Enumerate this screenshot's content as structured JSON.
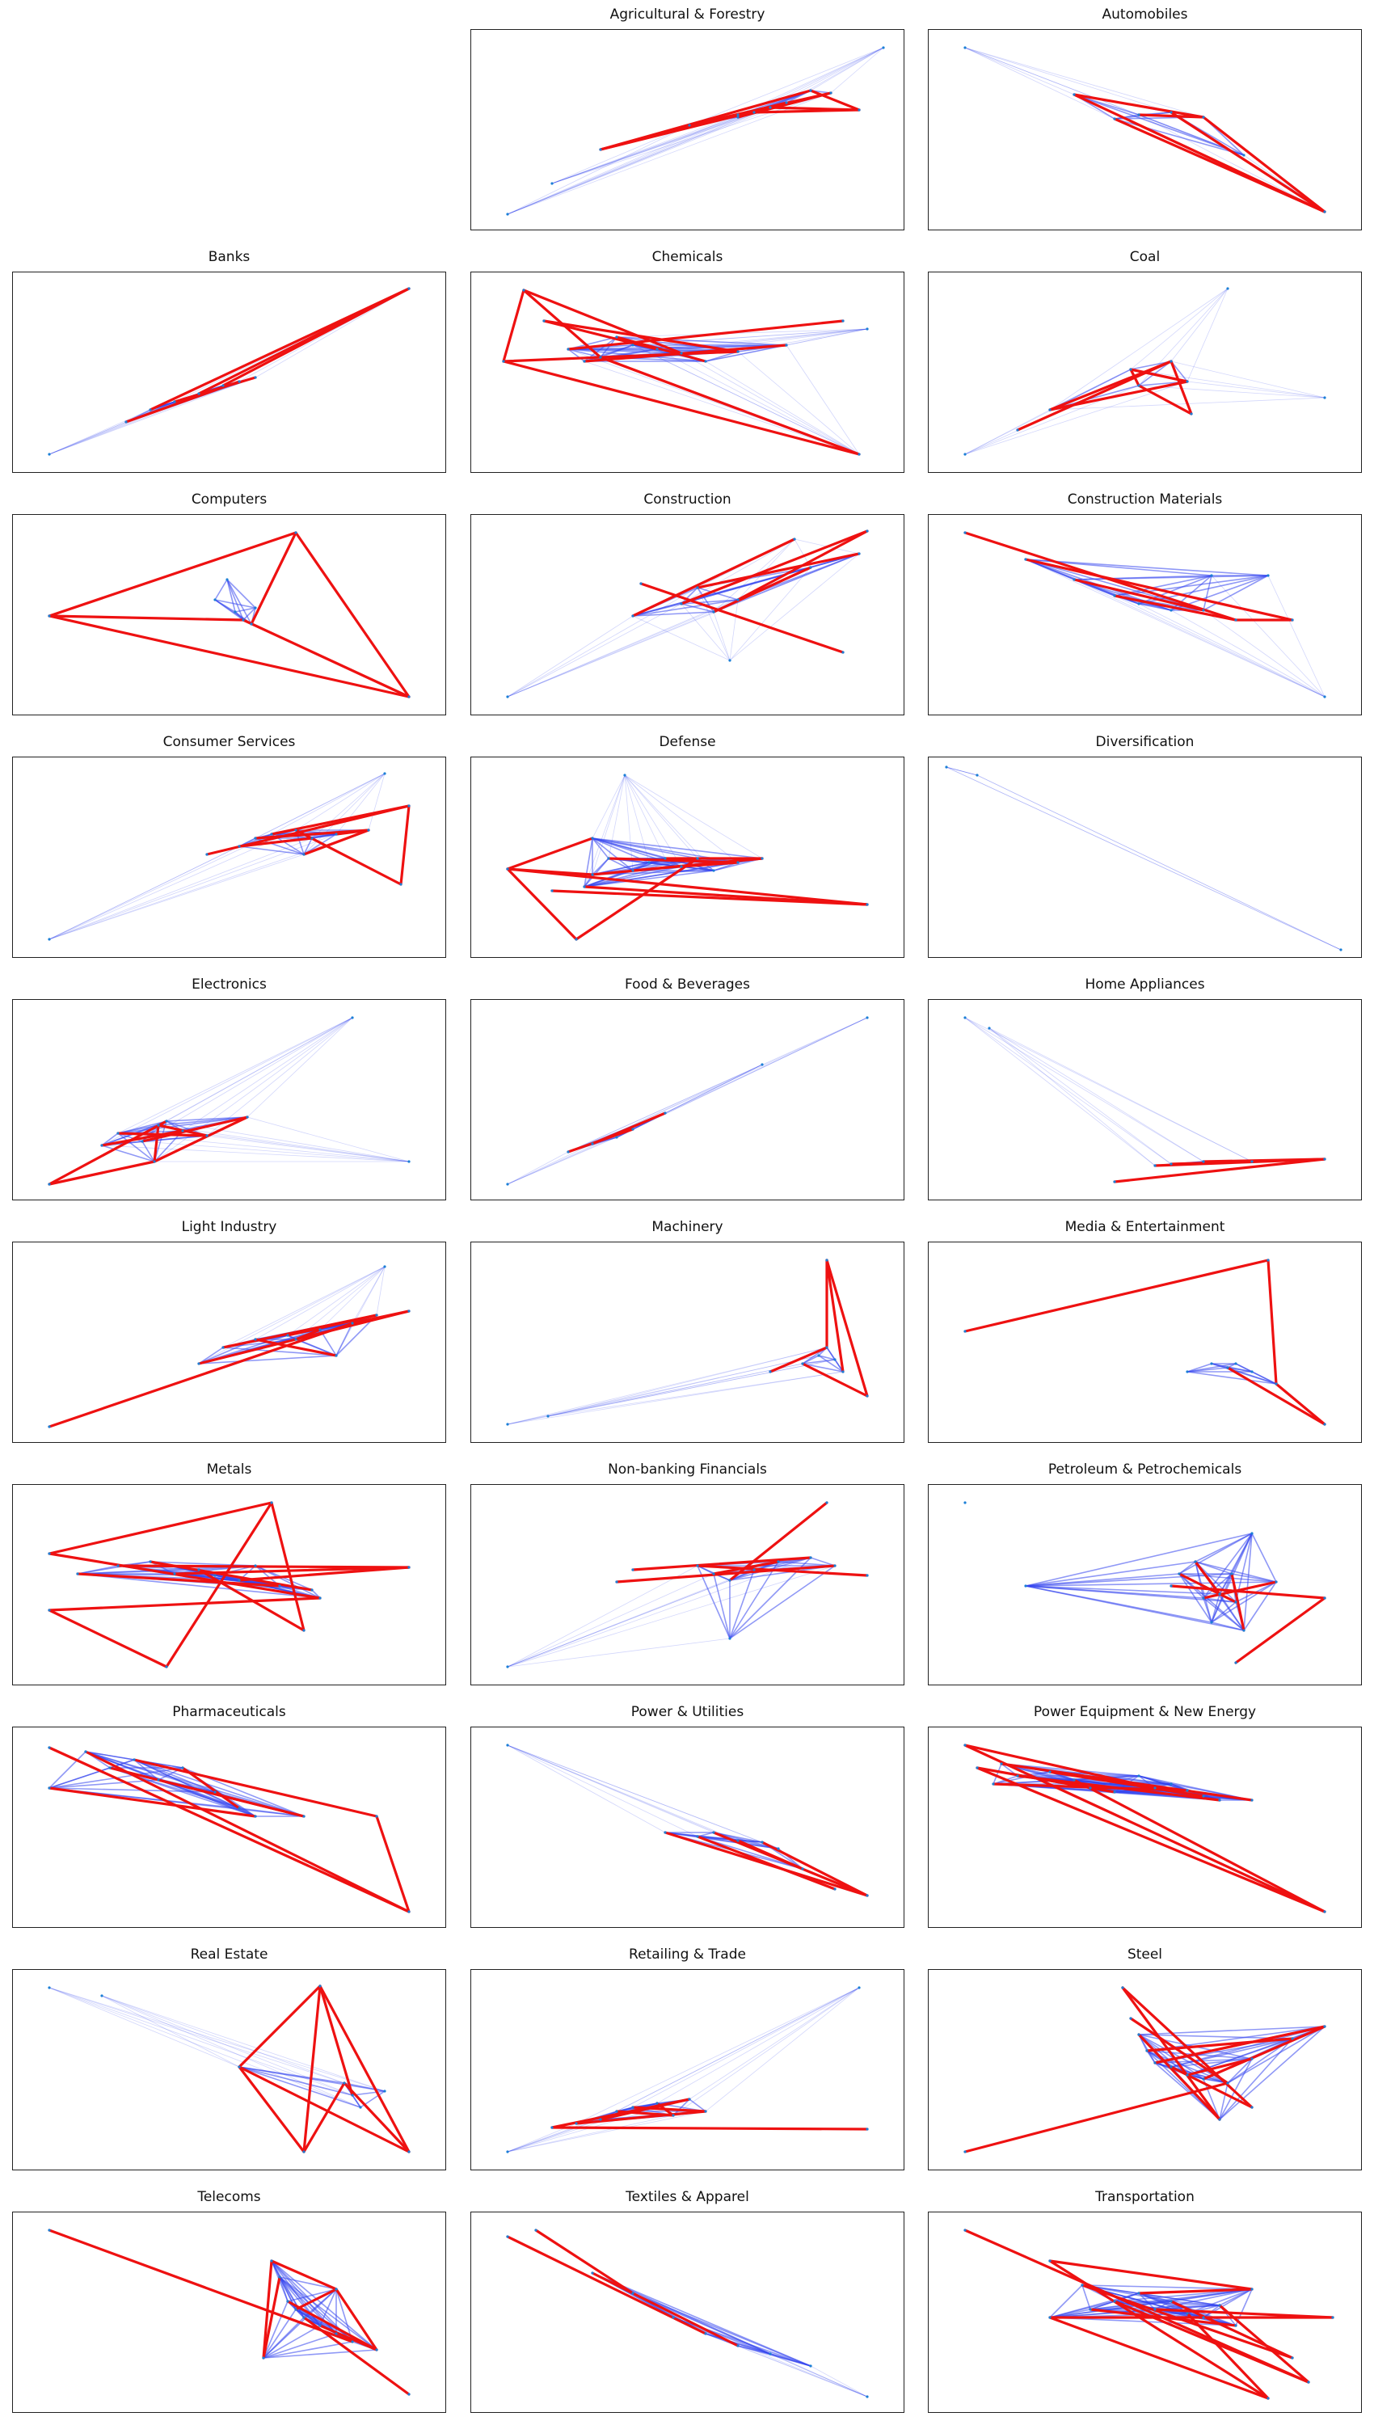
{
  "figure": {
    "panels": [
      {
        "title": ""
      },
      {
        "title": "Agricultural & Forestry"
      },
      {
        "title": "Automobiles"
      },
      {
        "title": "Banks"
      },
      {
        "title": "Chemicals"
      },
      {
        "title": "Coal"
      },
      {
        "title": "Computers"
      },
      {
        "title": "Construction"
      },
      {
        "title": "Construction Materials"
      },
      {
        "title": "Consumer Services"
      },
      {
        "title": "Defense"
      },
      {
        "title": "Diversification"
      },
      {
        "title": "Electronics"
      },
      {
        "title": "Food & Beverages"
      },
      {
        "title": "Home Appliances"
      },
      {
        "title": "Light Industry"
      },
      {
        "title": "Machinery"
      },
      {
        "title": "Media & Entertainment"
      },
      {
        "title": "Metals"
      },
      {
        "title": "Non-banking Financials"
      },
      {
        "title": "Petroleum & Petrochemicals"
      },
      {
        "title": "Pharmaceuticals"
      },
      {
        "title": "Power & Utilities"
      },
      {
        "title": "Power Equipment & New Energy"
      },
      {
        "title": "Real Estate"
      },
      {
        "title": "Retailing & Trade"
      },
      {
        "title": "Steel"
      },
      {
        "title": "Telecoms"
      },
      {
        "title": "Textiles & Apparel"
      },
      {
        "title": "Transportation"
      }
    ]
  },
  "colors": {
    "highlight_edge": "#ee1111",
    "background_edge": "#3344ee",
    "node": "#1b7fd6"
  }
}
